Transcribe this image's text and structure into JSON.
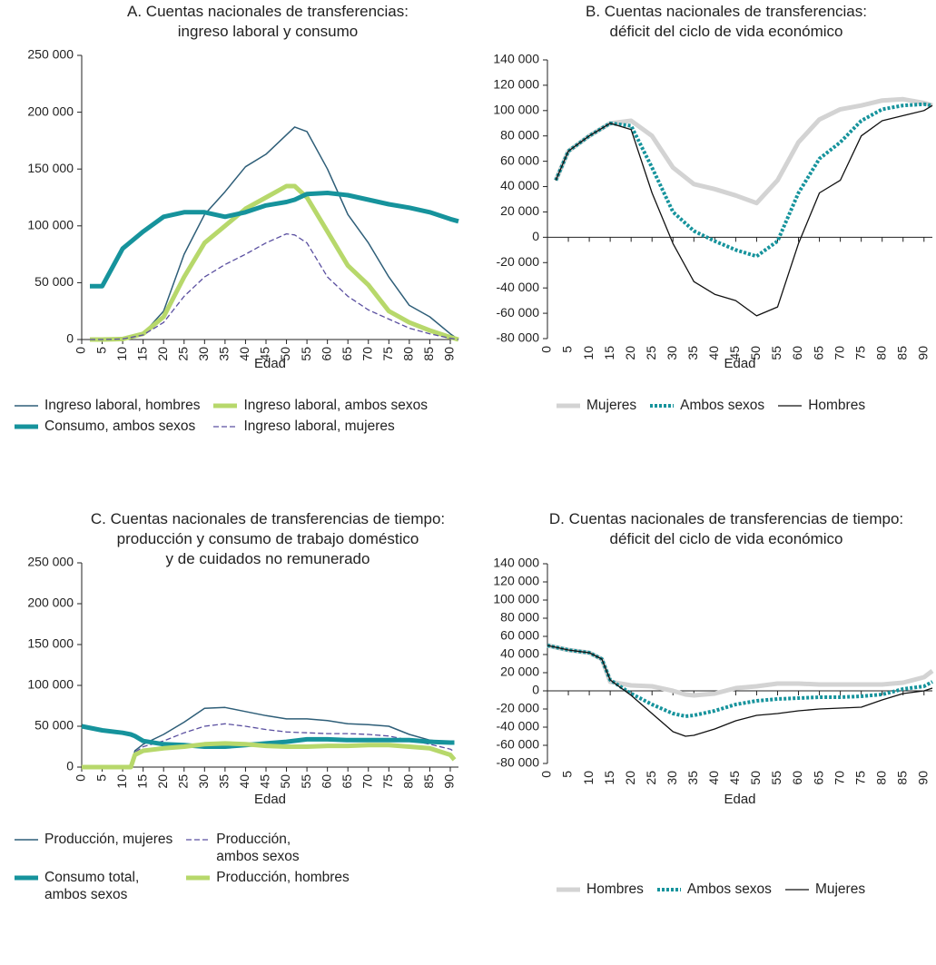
{
  "chart_data": [
    {
      "type": "line",
      "title": "A. Cuentas nacionales de transferencias:\ningreso laboral y consumo",
      "x_label": "Edad",
      "xlim": [
        0,
        92
      ],
      "xticks": [
        0,
        5,
        10,
        15,
        20,
        25,
        30,
        35,
        40,
        45,
        50,
        55,
        60,
        65,
        70,
        75,
        80,
        85,
        90
      ],
      "ylim": [
        0,
        250000
      ],
      "yticks": [
        0,
        {
          "value": 50000,
          "label": "50 000"
        },
        {
          "value": 100000,
          "label": "100 000"
        },
        {
          "value": 150000,
          "label": "150 000"
        },
        {
          "value": 200000,
          "label": "200 000"
        },
        {
          "value": 250000,
          "label": "250 000"
        }
      ],
      "x": [
        2,
        5,
        10,
        15,
        20,
        25,
        30,
        35,
        40,
        45,
        50,
        52,
        55,
        60,
        65,
        70,
        75,
        80,
        85,
        90,
        92
      ],
      "series": [
        {
          "name": "Ingreso laboral, hombres",
          "color": "#2e5e78",
          "line_width": 1.5,
          "dash": "solid",
          "values": [
            0,
            0,
            500,
            5000,
            25000,
            75000,
            110000,
            130000,
            152000,
            163000,
            180000,
            187000,
            183000,
            150000,
            110000,
            85000,
            55000,
            30000,
            20000,
            5000,
            0
          ]
        },
        {
          "name": "Ingreso laboral, ambos sexos",
          "color": "#b7d86b",
          "line_width": 5,
          "dash": "solid",
          "values": [
            0,
            0,
            500,
            5000,
            20000,
            55000,
            85000,
            100000,
            115000,
            125000,
            135000,
            135000,
            125000,
            95000,
            65000,
            48000,
            25000,
            15000,
            8000,
            2000,
            0
          ]
        },
        {
          "name": "Consumo, ambos sexos",
          "color": "#16939c",
          "line_width": 5,
          "dash": "solid",
          "values": [
            47000,
            47000,
            80000,
            95000,
            108000,
            112000,
            112000,
            108000,
            112000,
            118000,
            121000,
            123000,
            128000,
            129000,
            127000,
            123000,
            119000,
            116000,
            112000,
            106000,
            104000
          ]
        },
        {
          "name": "Ingreso laboral, mujeres",
          "color": "#5a4fa0",
          "line_width": 1.3,
          "dash": "dashed",
          "values": [
            0,
            0,
            500,
            4000,
            15000,
            38000,
            55000,
            66000,
            75000,
            85000,
            93000,
            92000,
            85000,
            55000,
            38000,
            26000,
            18000,
            10000,
            5000,
            1000,
            0
          ]
        }
      ]
    },
    {
      "type": "line",
      "title": "B. Cuentas nacionales de transferencias:\ndéficit del ciclo de vida económico",
      "x_label": "Edad",
      "xlim": [
        0,
        92
      ],
      "xticks": [
        0,
        5,
        10,
        15,
        20,
        25,
        30,
        35,
        40,
        45,
        50,
        55,
        60,
        65,
        70,
        75,
        80,
        85,
        90
      ],
      "ylim": [
        -80000,
        140000
      ],
      "yticks": [
        {
          "value": -80000,
          "label": "-80 000"
        },
        {
          "value": -60000,
          "label": "-60 000"
        },
        {
          "value": -40000,
          "label": "-40 000"
        },
        {
          "value": -20000,
          "label": "-20 000"
        },
        0,
        {
          "value": 20000,
          "label": "20 000"
        },
        {
          "value": 40000,
          "label": "40 000"
        },
        {
          "value": 60000,
          "label": "60 000"
        },
        {
          "value": 80000,
          "label": "80 000"
        },
        {
          "value": 100000,
          "label": "100 000"
        },
        {
          "value": 120000,
          "label": "120 000"
        },
        {
          "value": 140000,
          "label": "140 000"
        }
      ],
      "x": [
        2,
        5,
        10,
        15,
        20,
        25,
        30,
        35,
        40,
        45,
        50,
        55,
        60,
        65,
        70,
        75,
        80,
        85,
        90,
        92
      ],
      "series": [
        {
          "name": "Mujeres",
          "color": "#d3d3d3",
          "line_width": 5,
          "dash": "solid",
          "values": [
            45000,
            68000,
            80000,
            90000,
            92000,
            80000,
            55000,
            42000,
            38000,
            33000,
            27000,
            45000,
            75000,
            93000,
            101000,
            104000,
            108000,
            109000,
            106000,
            104000
          ]
        },
        {
          "name": "Ambos sexos",
          "color": "#16939c",
          "line_width": 4,
          "dash": "dotted",
          "values": [
            45000,
            68000,
            80000,
            90000,
            88000,
            55000,
            20000,
            5000,
            -3000,
            -10000,
            -15000,
            -3000,
            35000,
            62000,
            75000,
            92000,
            101000,
            104000,
            105000,
            104000
          ]
        },
        {
          "name": "Hombres",
          "color": "#111111",
          "line_width": 1.3,
          "dash": "solid",
          "values": [
            45000,
            68000,
            80000,
            90000,
            85000,
            35000,
            -5000,
            -35000,
            -45000,
            -50000,
            -62000,
            -55000,
            -5000,
            35000,
            45000,
            80000,
            92000,
            96000,
            100000,
            104000
          ]
        }
      ]
    },
    {
      "type": "line",
      "title": "C. Cuentas nacionales de transferencias de tiempo:\nproducción y consumo de trabajo doméstico\ny de cuidados no remunerado",
      "x_label": "Edad",
      "xlim": [
        0,
        92
      ],
      "xticks": [
        0,
        5,
        10,
        15,
        20,
        25,
        30,
        35,
        40,
        45,
        50,
        55,
        60,
        65,
        70,
        75,
        80,
        85,
        90
      ],
      "ylim": [
        0,
        250000
      ],
      "yticks": [
        0,
        {
          "value": 50000,
          "label": "50 000"
        },
        {
          "value": 100000,
          "label": "100 000"
        },
        {
          "value": 150000,
          "label": "150 000"
        },
        {
          "value": 200000,
          "label": "200 000"
        },
        {
          "value": 250000,
          "label": "250 000"
        }
      ],
      "x": [
        0,
        5,
        10,
        12,
        13,
        15,
        20,
        25,
        30,
        35,
        40,
        45,
        50,
        55,
        60,
        65,
        70,
        75,
        80,
        85,
        90,
        91
      ],
      "series": [
        {
          "name": "Producción, mujeres",
          "color": "#2e5e78",
          "line_width": 1.5,
          "dash": "solid",
          "values": [
            0,
            0,
            0,
            0,
            20000,
            28000,
            40000,
            55000,
            72000,
            73000,
            68000,
            63000,
            59000,
            59000,
            57000,
            53000,
            52000,
            50000,
            40000,
            33000,
            30000,
            30000
          ]
        },
        {
          "name": "Producción,\nambos sexos",
          "color": "#5a4fa0",
          "line_width": 1.3,
          "dash": "dashed",
          "values": [
            0,
            0,
            0,
            0,
            18000,
            25000,
            32000,
            42000,
            50000,
            53000,
            50000,
            46000,
            43000,
            42000,
            41000,
            41000,
            40000,
            38000,
            33000,
            28000,
            22000,
            19000
          ]
        },
        {
          "name": "Consumo total,\nambos sexos",
          "color": "#16939c",
          "line_width": 5,
          "dash": "solid",
          "values": [
            50000,
            45000,
            42000,
            40000,
            38000,
            32000,
            28000,
            27000,
            25000,
            25000,
            27000,
            29000,
            31000,
            34000,
            34000,
            33000,
            33000,
            33000,
            33000,
            31000,
            30000,
            30000
          ]
        },
        {
          "name": "Producción, hombres",
          "color": "#b7d86b",
          "line_width": 5,
          "dash": "solid",
          "values": [
            0,
            0,
            0,
            0,
            15000,
            20000,
            23000,
            25000,
            28000,
            29000,
            28000,
            26000,
            25000,
            25000,
            26000,
            26000,
            27000,
            27000,
            25000,
            23000,
            15000,
            9000
          ]
        }
      ]
    },
    {
      "type": "line",
      "title": "D. Cuentas nacionales de transferencias de tiempo:\ndéficit del ciclo de vida económico",
      "x_label": "Edad",
      "xlim": [
        0,
        92
      ],
      "xticks": [
        0,
        5,
        10,
        15,
        20,
        25,
        30,
        35,
        40,
        45,
        50,
        55,
        60,
        65,
        70,
        75,
        80,
        85,
        90
      ],
      "ylim": [
        -80000,
        140000
      ],
      "yticks": [
        {
          "value": -80000,
          "label": "-80 000"
        },
        {
          "value": -60000,
          "label": "-60 000"
        },
        {
          "value": -40000,
          "label": "-40 000"
        },
        {
          "value": -20000,
          "label": "-20 000"
        },
        0,
        {
          "value": 20000,
          "label": "20 000"
        },
        {
          "value": 40000,
          "label": "40 000"
        },
        {
          "value": 60000,
          "label": "60 000"
        },
        {
          "value": 80000,
          "label": "80 000"
        },
        {
          "value": 100000,
          "label": "100 000"
        },
        {
          "value": 120000,
          "label": "120 000"
        },
        {
          "value": 140000,
          "label": "140 000"
        }
      ],
      "x": [
        0,
        5,
        10,
        13,
        15,
        20,
        25,
        30,
        33,
        35,
        40,
        45,
        50,
        55,
        60,
        65,
        70,
        75,
        80,
        85,
        90,
        92
      ],
      "series": [
        {
          "name": "Hombres",
          "color": "#d3d3d3",
          "line_width": 5,
          "dash": "solid",
          "values": [
            50000,
            45000,
            42000,
            35000,
            10000,
            6000,
            5000,
            0,
            -4000,
            -5000,
            -3000,
            3000,
            5000,
            8000,
            8000,
            7000,
            7000,
            7000,
            7000,
            9000,
            15000,
            22000
          ]
        },
        {
          "name": "Ambos sexos",
          "color": "#16939c",
          "line_width": 4,
          "dash": "dotted",
          "values": [
            50000,
            45000,
            42000,
            35000,
            12000,
            -3000,
            -15000,
            -25000,
            -28000,
            -27000,
            -22000,
            -15000,
            -11000,
            -9000,
            -8000,
            -7000,
            -7000,
            -6000,
            -4000,
            2000,
            5000,
            10000
          ]
        },
        {
          "name": "Mujeres",
          "color": "#111111",
          "line_width": 1.3,
          "dash": "solid",
          "values": [
            50000,
            45000,
            42000,
            35000,
            12000,
            -5000,
            -25000,
            -45000,
            -50000,
            -49000,
            -42000,
            -33000,
            -27000,
            -25000,
            -22000,
            -20000,
            -19000,
            -18000,
            -10000,
            -3000,
            0,
            3000
          ]
        }
      ]
    }
  ]
}
